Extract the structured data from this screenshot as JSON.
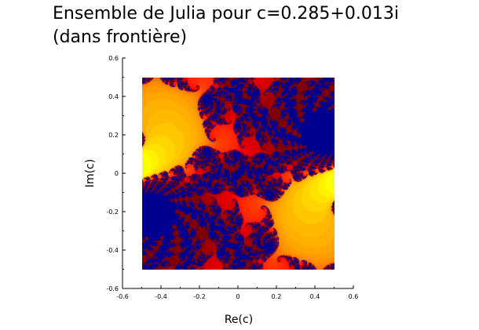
{
  "title_line1": "Ensemble de Julia pour c=0.285+0.013i",
  "title_line2": "(dans frontière)",
  "chart_data": {
    "type": "heatmap",
    "title": "Ensemble de Julia pour c=0.285+0.013i (dans frontière)",
    "xlabel": "Re(c)",
    "ylabel": "Im(c)",
    "xlim": [
      -0.6,
      0.6
    ],
    "ylim": [
      -0.6,
      0.6
    ],
    "xticks": [
      "-0.6",
      "-0.4",
      "-0.2",
      "0",
      "0.2",
      "0.4",
      "0.6"
    ],
    "yticks": [
      "0.6",
      "0.4",
      "0.2",
      "0",
      "-0.2",
      "-0.4",
      "-0.6"
    ],
    "data_extent": {
      "x": [
        -0.5,
        0.5
      ],
      "y": [
        -0.5,
        0.5
      ]
    },
    "c": {
      "re": 0.285,
      "im": 0.013
    },
    "max_iterations": 150,
    "colormap": "jet",
    "colors": {
      "background": "#00008f",
      "interior": "#00008f"
    },
    "grid": false,
    "legend": "none"
  }
}
